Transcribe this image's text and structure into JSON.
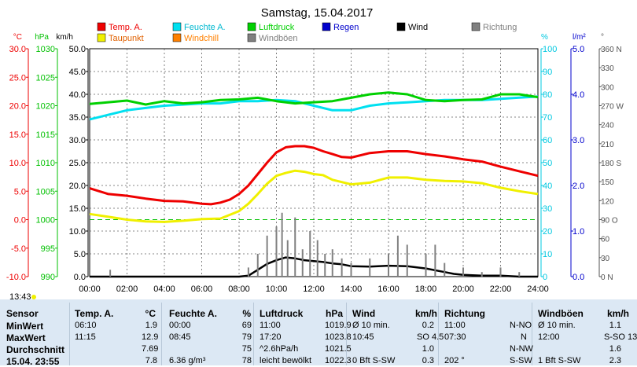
{
  "chart_data": {
    "type": "line",
    "title": "Samstag, 15.04.2017",
    "x_ticks": [
      "00:00",
      "02:00",
      "04:00",
      "06:00",
      "08:00",
      "10:00",
      "12:00",
      "14:00",
      "16:00",
      "18:00",
      "20:00",
      "22:00",
      "24:00"
    ],
    "xlim": [
      0,
      24
    ],
    "time_marker": "13:43",
    "legend": [
      {
        "name": "Temp. A.",
        "color": "#ee0000"
      },
      {
        "name": "Feuchte A.",
        "color": "#00e0f0"
      },
      {
        "name": "Luftdruck",
        "color": "#00d000"
      },
      {
        "name": "Regen",
        "color": "#0000cc"
      },
      {
        "name": "Wind",
        "color": "#000000"
      },
      {
        "name": "Richtung",
        "color": "#808080"
      },
      {
        "name": "Taupunkt",
        "color": "#f0f000"
      },
      {
        "name": "Windchill",
        "color": "#ff8000"
      },
      {
        "name": "Windböen",
        "color": "#808080"
      }
    ],
    "axes": [
      {
        "unit": "°C",
        "color": "#ee0000",
        "ticks": [
          "30.0",
          "25.0",
          "20.0",
          "15.0",
          "10.0",
          "5.0",
          "0.0",
          "-5.0",
          "-10.0"
        ],
        "ylim": [
          -10,
          30
        ]
      },
      {
        "unit": "hPa",
        "color": "#00c000",
        "ticks": [
          "1030",
          "1025",
          "1020",
          "1015",
          "1010",
          "1005",
          "1000",
          "995",
          "990"
        ],
        "ylim": [
          990,
          1030
        ]
      },
      {
        "unit": "km/h",
        "color": "#000000",
        "ticks": [
          "50.0",
          "45.0",
          "40.0",
          "35.0",
          "30.0",
          "25.0",
          "20.0",
          "15.0",
          "10.0",
          "5.0",
          "0.0"
        ],
        "ylim": [
          0,
          50
        ]
      },
      {
        "unit": "%",
        "color": "#00c8e0",
        "ticks": [
          "100",
          "90",
          "80",
          "70",
          "60",
          "50",
          "40",
          "30",
          "20",
          "10",
          "0"
        ],
        "ylim": [
          0,
          100
        ]
      },
      {
        "unit": "l/m²",
        "color": "#0000cc",
        "ticks": [
          "5.0",
          "4.0",
          "3.0",
          "2.0",
          "1.0",
          "0.0"
        ],
        "ylim": [
          0,
          5
        ]
      },
      {
        "unit": "°",
        "color": "#505050",
        "ticks": [
          "360 N",
          "330",
          "300",
          "270 W",
          "240",
          "210",
          "180 S",
          "150",
          "120",
          "90 O",
          "60",
          "30",
          "0 N"
        ],
        "ylim": [
          0,
          360
        ]
      }
    ],
    "series": [
      {
        "name": "Temp. A.",
        "color": "#ee0000",
        "axis": "°C",
        "x": [
          0,
          1,
          2,
          3,
          4,
          5,
          6,
          6.5,
          7,
          7.5,
          8,
          8.5,
          9,
          9.5,
          10,
          10.5,
          11,
          11.5,
          12,
          12.5,
          13,
          13.5,
          14,
          15,
          16,
          17,
          18,
          19,
          20,
          21,
          22,
          23,
          24
        ],
        "y": [
          5.5,
          4.5,
          4.2,
          3.7,
          3.3,
          3.2,
          2.8,
          2.7,
          3.0,
          3.5,
          4.5,
          6.0,
          8.0,
          10.0,
          11.8,
          12.7,
          12.9,
          12.9,
          12.6,
          12.0,
          11.5,
          11.0,
          10.9,
          11.7,
          12.0,
          12.0,
          11.5,
          11.1,
          10.6,
          10.2,
          9.3,
          8.5,
          7.7
        ]
      },
      {
        "name": "Taupunkt",
        "color": "#f0f000",
        "axis": "°C",
        "x": [
          0,
          1,
          2,
          3,
          4,
          5,
          6,
          7,
          8,
          8.5,
          9,
          9.5,
          10,
          10.5,
          11,
          11.5,
          12,
          12.5,
          13,
          14,
          15,
          16,
          17,
          18,
          19,
          20,
          21,
          22,
          23,
          24
        ],
        "y": [
          1.0,
          0.5,
          0.0,
          -0.3,
          -0.4,
          -0.2,
          0.1,
          0.2,
          1.5,
          2.8,
          4.5,
          6.3,
          7.7,
          8.2,
          8.6,
          8.4,
          8.0,
          7.8,
          7.0,
          6.2,
          6.5,
          7.4,
          7.4,
          7.0,
          6.8,
          6.7,
          6.4,
          5.6,
          5.0,
          4.5
        ]
      },
      {
        "name": "Feuchte A.",
        "color": "#00e0f0",
        "axis": "%",
        "x": [
          0,
          1,
          2,
          3,
          4,
          5,
          6,
          7,
          8,
          9,
          10,
          11,
          12,
          13,
          14,
          15,
          16,
          17,
          18,
          19,
          20,
          21,
          22,
          23,
          24
        ],
        "y": [
          69,
          71,
          73,
          74,
          75,
          75.5,
          76,
          76,
          77,
          77,
          77.5,
          77,
          75,
          73,
          73,
          75,
          76,
          76.5,
          77,
          77.5,
          77.5,
          77.5,
          78,
          78.5,
          79
        ]
      },
      {
        "name": "Luftdruck",
        "color": "#00d000",
        "axis": "hPa",
        "x": [
          0,
          1,
          2,
          3,
          4,
          5,
          6,
          7,
          8,
          9,
          10,
          11,
          12,
          13,
          14,
          15,
          16,
          17,
          18,
          19,
          20,
          21,
          22,
          23,
          24
        ],
        "y": [
          1020.3,
          1020.6,
          1020.9,
          1020.2,
          1020.8,
          1020.4,
          1020.6,
          1021.0,
          1021.1,
          1021.4,
          1020.8,
          1020.4,
          1020.6,
          1020.8,
          1021.4,
          1022.0,
          1022.3,
          1022.0,
          1021.0,
          1020.8,
          1021.0,
          1021.1,
          1022.0,
          1022.0,
          1021.5
        ]
      },
      {
        "name": "Wind",
        "color": "#000000",
        "axis": "km/h",
        "x": [
          0,
          8,
          8.5,
          9,
          9.5,
          10,
          10.5,
          11,
          11.5,
          12,
          12.5,
          13,
          13.5,
          14,
          15,
          16,
          17,
          18,
          19,
          19.5,
          20,
          21,
          22,
          23,
          24
        ],
        "y": [
          0,
          0,
          0.2,
          1.5,
          2.8,
          3.6,
          4.2,
          4.0,
          3.6,
          3.4,
          3.2,
          2.9,
          2.7,
          2.3,
          2.2,
          2.4,
          2.3,
          1.8,
          1.0,
          0.6,
          0.4,
          0.2,
          0.2,
          0,
          0
        ]
      },
      {
        "name": "Windböen",
        "color": "#808080",
        "axis": "km/h",
        "x": [
          0,
          1,
          1.1,
          1.2,
          8,
          8.5,
          9,
          9.5,
          10,
          10.3,
          10.6,
          11,
          11.4,
          11.8,
          12.2,
          12.6,
          13,
          13.5,
          14,
          15,
          16,
          16.5,
          17,
          18,
          18.5,
          19,
          20,
          21,
          22,
          23,
          24
        ],
        "y": [
          0,
          0,
          1.5,
          0,
          0,
          2,
          5,
          9,
          11,
          14,
          8,
          13,
          6,
          10,
          8,
          5,
          6,
          4,
          3,
          4,
          5,
          9,
          7,
          5,
          7,
          3,
          2,
          1,
          2,
          1,
          0
        ]
      }
    ]
  },
  "panel": {
    "headers": [
      "Sensor",
      "Temp. A.",
      "°C",
      "Feuchte A.",
      "%",
      "Luftdruck",
      "hPa",
      "Wind",
      "km/h",
      "Richtung",
      "Windböen",
      "km/h"
    ],
    "rows": [
      [
        "MinWert",
        "06:10",
        "1.9",
        "00:00",
        "69",
        "11:00",
        "1019.9",
        "Ø 10 min.",
        "0.2",
        "11:00",
        "N-NO",
        "Ø 10 min.",
        "1.1"
      ],
      [
        "MaxWert",
        "11:15",
        "12.9",
        "08:45",
        "79",
        "17:20",
        "1023.8",
        "10:45",
        "SO 4.5",
        "07:30",
        "N",
        "12:00",
        "S-SO 13.0"
      ],
      [
        "Durchschnitt",
        "",
        "7.69",
        "",
        "75",
        "^2.6hPa/h",
        "1021.5",
        "",
        "1.0",
        "",
        "N-NW",
        "",
        "1.6"
      ],
      [
        "15.04. 23:55",
        "",
        "7.8",
        "6.36 g/m³",
        "78",
        "leicht bewölkt",
        "1022.3",
        "0 Bft S-SW",
        "0.3",
        "202 °",
        "S-SW",
        "1 Bft S-SW",
        "2.3"
      ]
    ]
  }
}
